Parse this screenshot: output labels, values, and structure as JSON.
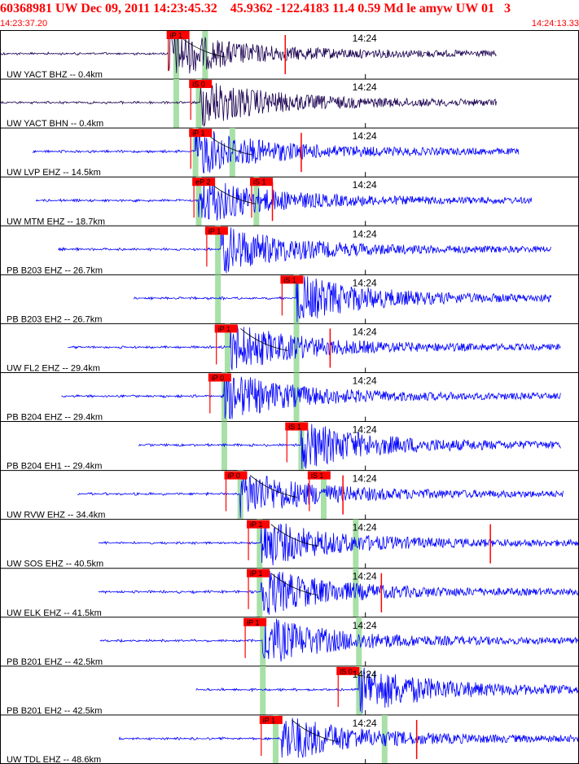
{
  "header": {
    "title": "60368981 UW Dec 09, 2011 14:23:45.32    45.9362 -122.4183 11.4 0.59 Md le amyw UW 01   3",
    "start_time": "14:23:37.20",
    "end_time": "14:24:13.33"
  },
  "colors": {
    "header_text": "#ff0000",
    "trace_default": "#0000ff",
    "trace_dark": "#1a0050",
    "pick_flag": "#ff0000",
    "pick_window": "#a8e0a8",
    "travel_time_curve": "#000000"
  },
  "chart_data": {
    "type": "seismogram_record_section",
    "time_range": [
      "14:23:37.20",
      "14:24:13.33"
    ],
    "minute_tick_label": "14:24",
    "traces": [
      {
        "label": "UW YACT BHZ -- 0.4km",
        "color": "dark",
        "pick": {
          "text": "iP 1",
          "time_s": 10.4
        },
        "onset_s": 10.5,
        "end_s": 31.0,
        "windows_s": [
          11.0,
          12.8
        ],
        "marker_s": 17.8,
        "curve": true
      },
      {
        "label": "UW YACT BHN -- 0.4km",
        "color": "dark",
        "pick": {
          "text": "iS 0",
          "time_s": 11.8
        },
        "onset_s": 12.5,
        "end_s": 31.0,
        "windows_s": [
          11.0,
          12.4
        ],
        "curve": false
      },
      {
        "label": "UW LVP EHZ -- 14.5km",
        "color": "blue",
        "pick": {
          "text": "iP 1",
          "time_s": 11.8
        },
        "onset_s": 12.2,
        "end_s": 32.4,
        "windows_s": [
          12.2,
          14.5
        ],
        "marker_s": 18.8,
        "curve": true
      },
      {
        "label": "UW MTM EHZ -- 18.7km",
        "color": "blue",
        "pick": {
          "text": "eP 2",
          "time_s": 12.0
        },
        "onset_s": 12.4,
        "end_s": 33.2,
        "windows_s": [
          12.4,
          16.0
        ],
        "marker_s": 17.0,
        "second_pick": {
          "text": "iS 1",
          "time_s": 15.6
        },
        "curve": true
      },
      {
        "label": "PB B203 EHZ -- 26.7km",
        "color": "blue",
        "pick": {
          "text": "iP 1",
          "time_s": 12.8
        },
        "onset_s": 13.8,
        "end_s": 34.4,
        "windows_s": [
          13.6
        ],
        "curve": false
      },
      {
        "label": "PB B203 EH2 -- 26.7km",
        "color": "blue",
        "pick": {
          "text": "iS 1",
          "time_s": 17.5
        },
        "onset_s": 18.5,
        "end_s": 34.4,
        "windows_s": [
          13.6,
          18.5
        ],
        "curve": false
      },
      {
        "label": "UW FL2 EHZ -- 29.4km",
        "color": "blue",
        "pick": {
          "text": "iP 1",
          "time_s": 13.4
        },
        "onset_s": 14.4,
        "end_s": 35.0,
        "windows_s": [
          14.2,
          18.5
        ],
        "marker_s": 20.6,
        "curve": true
      },
      {
        "label": "PB B204 EHZ -- 29.4km",
        "color": "blue",
        "pick": {
          "text": "iP 0",
          "time_s": 13.0
        },
        "onset_s": 14.0,
        "end_s": 35.0,
        "windows_s": [
          14.0,
          18.5
        ],
        "curve": false
      },
      {
        "label": "PB B204 EH1 -- 29.4km",
        "color": "blue",
        "pick": {
          "text": "iS 1",
          "time_s": 17.8
        },
        "onset_s": 18.8,
        "end_s": 35.0,
        "windows_s": [
          14.0,
          18.8
        ],
        "curve": false
      },
      {
        "label": "UW RVW EHZ -- 34.4km",
        "color": "blue",
        "pick": {
          "text": "iP 0",
          "time_s": 14.0
        },
        "onset_s": 15.0,
        "end_s": 35.2,
        "windows_s": [
          15.0,
          20.2
        ],
        "marker_s": 21.4,
        "second_pick": {
          "text": "iS 1",
          "time_s": 19.2
        },
        "curve": true
      },
      {
        "label": "UW SOS EHZ -- 40.5km",
        "color": "blue",
        "pick": {
          "text": "iP 1",
          "time_s": 15.4
        },
        "onset_s": 16.3,
        "end_s": 37.0,
        "windows_s": [
          16.2,
          22.2
        ],
        "marker_s": 30.6,
        "curve": true
      },
      {
        "label": "UW ELK EHZ -- 41.5km",
        "color": "blue",
        "pick": {
          "text": "iP 1",
          "time_s": 15.4
        },
        "onset_s": 16.3,
        "end_s": 37.0,
        "windows_s": [
          16.2,
          22.2
        ],
        "marker_s": 23.8,
        "curve": true
      },
      {
        "label": "PB B201 EHZ -- 42.5km",
        "color": "blue",
        "pick": {
          "text": "iP 1",
          "time_s": 15.2
        },
        "onset_s": 16.4,
        "end_s": 37.2,
        "windows_s": [
          16.4,
          22.4
        ],
        "curve": false
      },
      {
        "label": "PB B201 EH2 -- 42.5km",
        "color": "blue",
        "pick": {
          "text": "iS 0",
          "time_s": 21.0
        },
        "onset_s": 22.4,
        "end_s": 37.2,
        "windows_s": [
          16.4,
          22.4
        ],
        "curve": false
      },
      {
        "label": "UW TDL EHZ -- 48.6km",
        "color": "blue",
        "pick": {
          "text": "iP 1",
          "time_s": 16.2
        },
        "onset_s": 17.6,
        "end_s": 38.2,
        "windows_s": [
          17.2,
          24.0
        ],
        "marker_s": 26.0,
        "curve": true
      }
    ]
  }
}
